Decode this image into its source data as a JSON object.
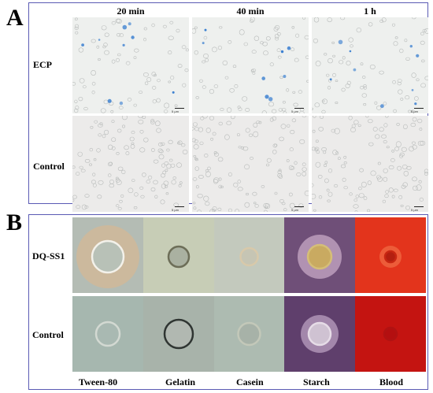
{
  "panel_a": {
    "letter": "A",
    "columns": [
      "20 min",
      "40 min",
      "1 h"
    ],
    "rows": [
      "ECP",
      "Control"
    ],
    "scale_bar": "5 μm",
    "blue_cell_color": "#3a7fd0"
  },
  "panel_b": {
    "letter": "B",
    "rows": [
      "DQ-SS1",
      "Control"
    ],
    "columns": [
      "Tween-80",
      "Gelatin",
      "Casein",
      "Starch",
      "Blood"
    ],
    "plate_colors": {
      "tween": "#b4bcb4",
      "gelatin": "#c7cdb6",
      "casein": "#c3c9bd",
      "starch": "#6f4f78",
      "blood": "#e3341c"
    }
  }
}
